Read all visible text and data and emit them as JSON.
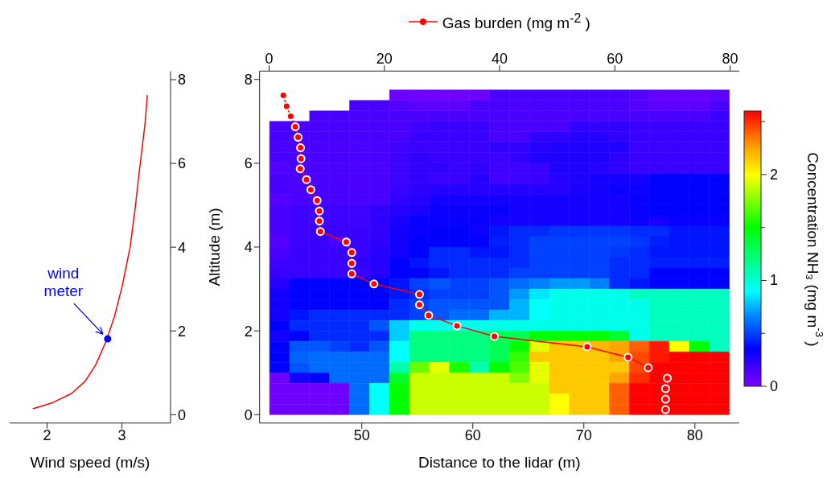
{
  "chart_data": [
    {
      "type": "line",
      "xlabel": "Wind speed (m/s)",
      "xlim": [
        1.5,
        3.65
      ],
      "xticks": [
        2,
        3
      ],
      "ylim": [
        -0.2,
        8.2
      ],
      "yticks": [
        0,
        2,
        4,
        6,
        8
      ],
      "marker": "none",
      "annotations": [
        {
          "text": "wind meter",
          "x": 2.81,
          "y": 1.81
        }
      ],
      "series": [
        {
          "color": "#ff0000",
          "x": [
            1.81,
            2.08,
            2.33,
            2.51,
            2.65,
            2.79,
            2.9,
            3.0,
            3.11,
            3.18,
            3.24,
            3.31,
            3.34
          ],
          "values": [
            0.14,
            0.29,
            0.51,
            0.8,
            1.19,
            1.76,
            2.34,
            3.04,
            4.0,
            4.97,
            5.93,
            6.96,
            7.63
          ]
        },
        {
          "type": "scatter",
          "color": "#0000ff",
          "marker": "circle",
          "x": [
            2.81
          ],
          "values": [
            1.81
          ]
        }
      ]
    },
    {
      "type": "heatmap",
      "xlabel": "Distance to the lidar (m)",
      "ylabel": "Altitude (m)",
      "clabel": "Concentration NH₃ (mg m$^{-3}$ )",
      "xlim": [
        40.8,
        84.0
      ],
      "xticks": [
        50,
        60,
        70,
        80
      ],
      "x2lim": [
        -1.65,
        81.6
      ],
      "x2ticks": [
        0,
        20,
        40,
        60,
        80
      ],
      "ylim": [
        -0.2,
        8.2
      ],
      "yticks": [
        0,
        2,
        4,
        6,
        8
      ],
      "clim": [
        0,
        2.6
      ],
      "cticks": [
        0,
        {
          "value": 0.5,
          "label": null
        },
        1,
        {
          "value": 1.5,
          "label": null
        },
        2,
        {
          "value": 2.5,
          "label": null
        }
      ],
      "legend": "top",
      "x": [
        42.6,
        44.4,
        46.2,
        48.0,
        49.8,
        51.6,
        53.4,
        55.2,
        57.0,
        58.8,
        60.6,
        62.4,
        64.2,
        66.0,
        67.8,
        69.6,
        71.4,
        73.2,
        75.0,
        76.8,
        78.6,
        80.4,
        82.2
      ],
      "y": [
        7.625,
        7.375,
        7.125,
        6.875,
        6.625,
        6.375,
        6.125,
        5.875,
        5.625,
        5.375,
        5.125,
        4.875,
        4.625,
        4.375,
        4.125,
        3.875,
        3.625,
        3.375,
        3.125,
        2.875,
        2.625,
        2.375,
        2.125,
        1.875,
        1.625,
        1.375,
        1.125,
        0.875,
        0.625,
        0.375,
        0.125
      ],
      "cells": [
        [
          null,
          null,
          null,
          null,
          null,
          null,
          0.05,
          0.05,
          0.05,
          0.05,
          0.05,
          0.15,
          0.15,
          0.15,
          0.15,
          0.15,
          0.15,
          0.15,
          0.12,
          0.08,
          0.08,
          0.08,
          0.1
        ],
        [
          null,
          null,
          null,
          null,
          0.15,
          0.15,
          0.12,
          0.1,
          0.1,
          0.1,
          0.15,
          0.15,
          0.15,
          0.15,
          0.15,
          0.15,
          0.15,
          0.15,
          0.12,
          0.1,
          0.1,
          0.1,
          0.15
        ],
        [
          null,
          null,
          0.15,
          0.15,
          0.15,
          0.15,
          0.15,
          0.15,
          0.15,
          0.15,
          0.15,
          0.15,
          0.15,
          0.15,
          0.15,
          0.15,
          0.15,
          0.15,
          0.15,
          0.15,
          0.15,
          0.15,
          0.2
        ],
        [
          0.15,
          0.15,
          0.15,
          0.15,
          0.15,
          0.15,
          0.15,
          0.18,
          0.2,
          0.2,
          0.2,
          0.15,
          0.15,
          0.15,
          0.15,
          0.22,
          0.22,
          0.22,
          0.2,
          0.2,
          0.2,
          0.2,
          0.2
        ],
        [
          0.15,
          0.15,
          0.15,
          0.15,
          0.15,
          0.15,
          0.15,
          0.2,
          0.2,
          0.2,
          0.2,
          0.15,
          0.15,
          0.22,
          0.22,
          0.25,
          0.25,
          0.22,
          0.2,
          0.2,
          0.2,
          0.2,
          0.2
        ],
        [
          0.15,
          0.15,
          0.15,
          0.15,
          0.15,
          0.15,
          0.18,
          0.2,
          0.2,
          0.2,
          0.2,
          0.22,
          0.22,
          0.25,
          0.27,
          0.27,
          0.27,
          0.27,
          0.2,
          0.2,
          0.2,
          0.2,
          0.2
        ],
        [
          0.15,
          0.15,
          0.15,
          0.15,
          0.15,
          0.15,
          0.18,
          0.22,
          0.2,
          0.2,
          0.2,
          0.18,
          0.22,
          0.27,
          0.27,
          0.27,
          0.27,
          0.22,
          0.2,
          0.2,
          0.2,
          0.2,
          0.2
        ],
        [
          0.12,
          0.15,
          0.15,
          0.15,
          0.15,
          0.15,
          0.18,
          0.22,
          0.22,
          0.2,
          0.22,
          0.18,
          0.18,
          0.2,
          0.27,
          0.27,
          0.25,
          0.22,
          0.2,
          0.2,
          0.2,
          0.2,
          0.2
        ],
        [
          0.15,
          0.15,
          0.15,
          0.15,
          0.15,
          0.15,
          0.18,
          0.22,
          0.2,
          0.2,
          0.25,
          0.17,
          0.18,
          0.2,
          0.25,
          0.27,
          0.3,
          0.3,
          0.3,
          0.35,
          0.35,
          0.35,
          0.35
        ],
        [
          0.15,
          0.15,
          0.15,
          0.15,
          0.15,
          0.15,
          0.2,
          0.22,
          0.25,
          0.25,
          0.25,
          0.25,
          0.25,
          0.25,
          0.25,
          0.28,
          0.3,
          0.32,
          0.32,
          0.35,
          0.35,
          0.35,
          0.35
        ],
        [
          0.12,
          0.15,
          0.15,
          0.15,
          0.15,
          0.15,
          0.22,
          0.25,
          0.3,
          0.3,
          0.3,
          0.3,
          0.3,
          0.3,
          0.3,
          0.3,
          0.3,
          0.3,
          0.33,
          0.35,
          0.35,
          0.35,
          0.35
        ],
        [
          0.15,
          0.18,
          0.18,
          0.18,
          0.18,
          0.22,
          0.25,
          0.28,
          0.32,
          0.32,
          0.32,
          0.33,
          0.3,
          0.3,
          0.3,
          0.3,
          0.3,
          0.3,
          0.33,
          0.35,
          0.35,
          0.35,
          0.35
        ],
        [
          0.15,
          0.18,
          0.18,
          0.18,
          0.18,
          0.22,
          0.28,
          0.33,
          0.33,
          0.33,
          0.33,
          0.3,
          0.3,
          0.3,
          0.3,
          0.3,
          0.3,
          0.3,
          0.32,
          0.3,
          0.33,
          0.33,
          0.33
        ],
        [
          0.15,
          0.18,
          0.2,
          0.2,
          0.2,
          0.22,
          0.3,
          0.33,
          0.35,
          0.35,
          0.32,
          0.4,
          0.45,
          0.45,
          0.48,
          0.48,
          0.48,
          0.48,
          0.45,
          0.45,
          0.4,
          0.4,
          0.4
        ],
        [
          0.12,
          0.18,
          0.2,
          0.15,
          0.2,
          0.22,
          0.3,
          0.35,
          0.35,
          0.35,
          0.35,
          0.42,
          0.45,
          0.5,
          0.5,
          0.5,
          0.5,
          0.5,
          0.48,
          0.42,
          0.4,
          0.4,
          0.4
        ],
        [
          0.15,
          0.2,
          0.2,
          0.2,
          0.2,
          0.25,
          0.3,
          0.35,
          0.45,
          0.45,
          0.4,
          0.4,
          0.45,
          0.5,
          0.5,
          0.5,
          0.5,
          0.48,
          0.45,
          0.4,
          0.4,
          0.4,
          0.4
        ],
        [
          0.18,
          0.2,
          0.2,
          0.2,
          0.22,
          0.25,
          0.35,
          0.4,
          0.45,
          0.45,
          0.45,
          0.45,
          0.45,
          0.5,
          0.5,
          0.5,
          0.5,
          0.45,
          0.45,
          0.42,
          0.42,
          0.42,
          0.42
        ],
        [
          0.2,
          0.2,
          0.2,
          0.2,
          0.2,
          0.25,
          0.35,
          0.35,
          0.4,
          0.45,
          0.45,
          0.45,
          0.5,
          0.5,
          0.5,
          0.5,
          0.5,
          0.45,
          0.45,
          0.35,
          0.35,
          0.35,
          0.35
        ],
        [
          0.25,
          0.35,
          0.35,
          0.35,
          0.35,
          0.35,
          0.4,
          0.5,
          0.55,
          0.5,
          0.5,
          0.55,
          0.6,
          0.65,
          0.7,
          0.7,
          0.65,
          0.45,
          0.4,
          0.35,
          0.35,
          0.35,
          0.35
        ],
        [
          0.3,
          0.35,
          0.35,
          0.35,
          0.35,
          0.35,
          0.4,
          0.45,
          0.5,
          0.5,
          0.5,
          0.55,
          0.7,
          0.85,
          0.95,
          0.95,
          0.95,
          0.95,
          1.05,
          1.05,
          1.05,
          1.05,
          1.05
        ],
        [
          0.3,
          0.35,
          0.35,
          0.35,
          0.35,
          0.35,
          0.45,
          0.5,
          0.55,
          0.55,
          0.55,
          0.55,
          0.75,
          0.9,
          0.95,
          0.95,
          0.95,
          0.95,
          0.95,
          1.05,
          1.05,
          1.05,
          1.05
        ],
        [
          0.3,
          0.4,
          0.45,
          0.45,
          0.45,
          0.45,
          0.45,
          0.5,
          0.55,
          0.6,
          0.6,
          0.75,
          0.75,
          0.9,
          0.95,
          0.95,
          0.95,
          0.95,
          0.95,
          1.05,
          1.05,
          1.05,
          1.05
        ],
        [
          0.35,
          0.45,
          0.45,
          0.45,
          0.45,
          0.55,
          0.8,
          0.95,
          0.95,
          0.95,
          0.95,
          0.95,
          0.95,
          0.95,
          0.95,
          0.95,
          0.95,
          0.95,
          0.95,
          1.05,
          1.05,
          1.05,
          1.05
        ],
        [
          0.3,
          0.35,
          0.45,
          0.45,
          0.45,
          0.45,
          0.8,
          1.2,
          1.2,
          1.2,
          1.2,
          1.3,
          1.3,
          1.5,
          1.5,
          1.5,
          1.5,
          1.4,
          0.95,
          1.05,
          1.05,
          1.05,
          1.05
        ],
        [
          0.35,
          0.55,
          0.55,
          0.5,
          0.45,
          0.55,
          0.9,
          1.2,
          1.2,
          1.2,
          1.2,
          1.3,
          1.5,
          1.95,
          2.15,
          2.15,
          2.2,
          2.25,
          2.4,
          2.55,
          2.0,
          1.5,
          1.05
        ],
        [
          0.35,
          0.58,
          0.6,
          0.6,
          0.6,
          0.6,
          0.9,
          1.2,
          1.2,
          1.2,
          1.2,
          1.3,
          1.6,
          2.15,
          2.15,
          2.15,
          2.15,
          2.25,
          2.45,
          2.55,
          2.6,
          2.6,
          2.6
        ],
        [
          0.35,
          0.55,
          0.6,
          0.6,
          0.6,
          0.6,
          1.1,
          1.7,
          1.95,
          1.55,
          1.1,
          1.5,
          1.65,
          1.95,
          2.15,
          2.15,
          2.15,
          2.15,
          2.45,
          2.6,
          2.6,
          2.6,
          2.6
        ],
        [
          0.05,
          0.3,
          0.35,
          0.6,
          0.6,
          0.6,
          1.4,
          1.9,
          1.9,
          1.9,
          1.9,
          1.9,
          1.75,
          1.95,
          2.15,
          2.15,
          2.15,
          2.25,
          2.5,
          2.6,
          2.6,
          2.6,
          2.6
        ],
        [
          0.05,
          0.05,
          0.05,
          0.05,
          0.6,
          0.9,
          1.5,
          1.9,
          1.9,
          1.9,
          1.9,
          1.9,
          1.9,
          1.9,
          2.15,
          2.15,
          2.15,
          2.4,
          2.6,
          2.6,
          2.6,
          2.6,
          2.6
        ],
        [
          0.05,
          0.05,
          0.05,
          0.05,
          0.6,
          0.9,
          1.5,
          1.9,
          1.9,
          1.9,
          1.9,
          1.9,
          1.9,
          1.9,
          2.0,
          2.15,
          2.15,
          2.4,
          2.6,
          2.6,
          2.6,
          2.6,
          2.6
        ],
        [
          0.05,
          0.05,
          0.05,
          0.05,
          0.6,
          0.9,
          1.5,
          1.9,
          1.9,
          1.9,
          1.9,
          1.9,
          1.9,
          1.9,
          2.0,
          2.15,
          2.15,
          2.4,
          2.6,
          2.6,
          2.6,
          2.6,
          2.6
        ]
      ],
      "series": [
        {
          "type": "line",
          "name": "Gas burden (mg m$^{-2}$ )",
          "color": "#ff0000",
          "marker": "circle",
          "axis": "x2",
          "x": [
            2.47,
            3.04,
            3.75,
            4.55,
            5.03,
            5.45,
            5.54,
            5.4,
            6.49,
            7.24,
            8.34,
            8.72,
            8.72,
            8.9,
            13.4,
            14.35,
            14.35,
            14.35,
            18.2,
            26.1,
            26.1,
            27.7,
            32.6,
            39.1,
            55.2,
            62.3,
            65.8,
            69.1,
            68.8,
            68.8,
            68.8
          ],
          "values": [
            7.62,
            7.36,
            7.12,
            6.87,
            6.62,
            6.37,
            6.11,
            5.87,
            5.61,
            5.37,
            5.11,
            4.86,
            4.62,
            4.37,
            4.12,
            3.87,
            3.61,
            3.36,
            3.12,
            2.87,
            2.62,
            2.37,
            2.12,
            1.87,
            1.62,
            1.37,
            1.12,
            0.87,
            0.62,
            0.37,
            0.12
          ]
        }
      ]
    }
  ]
}
